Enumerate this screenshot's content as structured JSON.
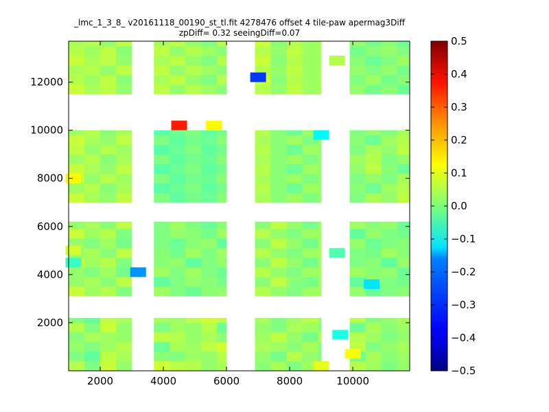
{
  "chart_data": {
    "type": "heatmap",
    "title": "_lmc_1_3_8_ v20161118_00190_st_tl.fit 4278476 offset 4 tile-paw apermag3Diff",
    "subtitle": "zpDiff= 0.32 seeingDiff=0.07",
    "xlabel": "",
    "ylabel": "",
    "xlim": [
      1000,
      11800
    ],
    "ylim": [
      0,
      13700
    ],
    "x_ticks": [
      2000,
      4000,
      6000,
      8000,
      10000
    ],
    "y_ticks": [
      2000,
      4000,
      6000,
      8000,
      10000,
      12000
    ],
    "grid": false,
    "colormap": "jet",
    "colorbar": {
      "vmin": -0.5,
      "vmax": 0.5,
      "ticks": [
        -0.5,
        -0.4,
        -0.3,
        -0.2,
        -0.1,
        0.0,
        0.1,
        0.2,
        0.3,
        0.4,
        0.5
      ],
      "tick_labels": [
        "−0.5",
        "−0.4",
        "−0.3",
        "−0.2",
        "−0.1",
        "0.0",
        "0.1",
        "0.2",
        "0.3",
        "0.4",
        "0.5"
      ]
    },
    "cell_size": [
      500,
      400
    ],
    "blocks": [
      {
        "x0": 1000,
        "x1": 3000,
        "y0": 0,
        "y1": 2200,
        "base": 0.05,
        "values": [
          0.05,
          0.0,
          0.07,
          0.02,
          0.0,
          -0.03,
          0.06,
          0.04,
          0.02,
          0.0,
          0.03,
          0.05,
          0.01,
          0.04,
          0.03,
          0.02
        ]
      },
      {
        "x0": 3700,
        "x1": 6000,
        "y0": 0,
        "y1": 2200,
        "base": 0.03,
        "values": [
          0.08,
          0.06,
          0.05,
          0.02,
          0.04,
          0.01,
          0.0,
          0.03,
          0.02,
          0.05,
          -0.02,
          0.04,
          0.03,
          0.06
        ]
      },
      {
        "x0": 6900,
        "x1": 9000,
        "y0": 0,
        "y1": 2200,
        "base": 0.02,
        "values": [
          0.01,
          0.04,
          0.0,
          0.03,
          0.06,
          0.02,
          -0.01,
          0.05,
          0.02,
          0.0,
          0.04,
          0.03
        ]
      },
      {
        "x0": 9900,
        "x1": 11800,
        "y0": 0,
        "y1": 2200,
        "base": 0.02,
        "values": [
          0.05,
          0.03,
          0.0,
          0.02,
          -0.02,
          0.04,
          0.01,
          0.03,
          0.06,
          0.0,
          0.02,
          0.04
        ]
      },
      {
        "x0": 1000,
        "x1": 3000,
        "y0": 3100,
        "y1": 6200,
        "base": 0.03,
        "values": [
          0.07,
          0.03,
          0.05,
          0.0,
          0.02,
          0.04,
          0.01,
          0.06,
          0.02,
          0.0,
          0.03,
          -0.01
        ]
      },
      {
        "x0": 3700,
        "x1": 6000,
        "y0": 3100,
        "y1": 6200,
        "base": 0.0,
        "values": [
          0.03,
          0.0,
          -0.02,
          0.01,
          0.02,
          -0.03,
          0.0,
          0.02,
          0.01,
          -0.01,
          0.03,
          0.0
        ]
      },
      {
        "x0": 6900,
        "x1": 9000,
        "y0": 3100,
        "y1": 6200,
        "base": 0.03,
        "values": [
          0.05,
          0.02,
          0.0,
          0.03,
          0.04,
          0.01,
          0.06,
          0.02,
          -0.01,
          0.03
        ]
      },
      {
        "x0": 9900,
        "x1": 11800,
        "y0": 3100,
        "y1": 6200,
        "base": 0.0,
        "values": [
          0.02,
          -0.02,
          0.0,
          0.01,
          -0.03,
          0.02,
          0.0,
          -0.01,
          0.03,
          0.01
        ]
      },
      {
        "x0": 1000,
        "x1": 3000,
        "y0": 7000,
        "y1": 10000,
        "base": 0.05,
        "values": [
          0.07,
          0.04,
          0.02,
          0.06,
          0.03,
          0.05,
          0.01,
          0.04,
          0.06,
          0.02,
          0.05,
          0.03
        ]
      },
      {
        "x0": 3700,
        "x1": 6000,
        "y0": 7000,
        "y1": 10000,
        "base": -0.02,
        "values": [
          0.0,
          -0.03,
          -0.01,
          -0.02,
          0.01,
          -0.04,
          -0.02,
          0.0,
          -0.03,
          -0.01
        ]
      },
      {
        "x0": 6900,
        "x1": 9000,
        "y0": 7000,
        "y1": 10000,
        "base": 0.02,
        "values": [
          0.04,
          0.01,
          0.03,
          0.0,
          0.02,
          0.05,
          0.01,
          -0.02,
          0.03,
          0.02
        ]
      },
      {
        "x0": 9900,
        "x1": 11800,
        "y0": 7000,
        "y1": 10000,
        "base": 0.02,
        "values": [
          0.0,
          0.04,
          0.02,
          0.06,
          0.01,
          -0.02,
          0.03,
          0.05,
          0.0,
          0.02
        ]
      },
      {
        "x0": 1000,
        "x1": 3000,
        "y0": 11500,
        "y1": 13700,
        "base": 0.05,
        "values": [
          0.07,
          0.04,
          0.06,
          0.02,
          0.05,
          0.03,
          0.06,
          0.01,
          0.04,
          0.05,
          0.02,
          0.06
        ]
      },
      {
        "x0": 3700,
        "x1": 6000,
        "y0": 11500,
        "y1": 13700,
        "base": 0.04,
        "values": [
          0.06,
          0.02,
          0.05,
          0.03,
          0.01,
          0.04,
          0.06,
          0.02,
          0.0,
          0.05
        ]
      },
      {
        "x0": 6900,
        "x1": 9000,
        "y0": 11500,
        "y1": 13700,
        "base": 0.04,
        "values": [
          0.05,
          0.02,
          0.06,
          0.03,
          0.04,
          0.07,
          0.01,
          0.05,
          0.03,
          0.04
        ]
      },
      {
        "x0": 9900,
        "x1": 11800,
        "y0": 11500,
        "y1": 13700,
        "base": 0.0,
        "values": [
          0.02,
          -0.01,
          0.01,
          -0.02,
          0.0,
          0.03,
          -0.01,
          0.01,
          0.02,
          0.0
        ]
      }
    ],
    "outliers": [
      {
        "x": 7000,
        "y": 12200,
        "value": -0.32
      },
      {
        "x": 4500,
        "y": 10200,
        "value": 0.35
      },
      {
        "x": 5600,
        "y": 10200,
        "value": 0.13
      },
      {
        "x": 9000,
        "y": 9800,
        "value": -0.13
      },
      {
        "x": 1150,
        "y": 8000,
        "value": 0.13
      },
      {
        "x": 3200,
        "y": 4100,
        "value": -0.23
      },
      {
        "x": 10600,
        "y": 3600,
        "value": -0.15
      },
      {
        "x": 9600,
        "y": 1500,
        "value": -0.1
      },
      {
        "x": 10000,
        "y": 700,
        "value": 0.12
      },
      {
        "x": 9000,
        "y": 200,
        "value": 0.1
      },
      {
        "x": 9500,
        "y": 4900,
        "value": -0.05
      },
      {
        "x": 9500,
        "y": 12900,
        "value": 0.05
      },
      {
        "x": 1150,
        "y": 4500,
        "value": -0.07
      },
      {
        "x": 1150,
        "y": 5000,
        "value": 0.08
      },
      {
        "x": 8300,
        "y": 3600,
        "value": 0.0
      }
    ]
  }
}
